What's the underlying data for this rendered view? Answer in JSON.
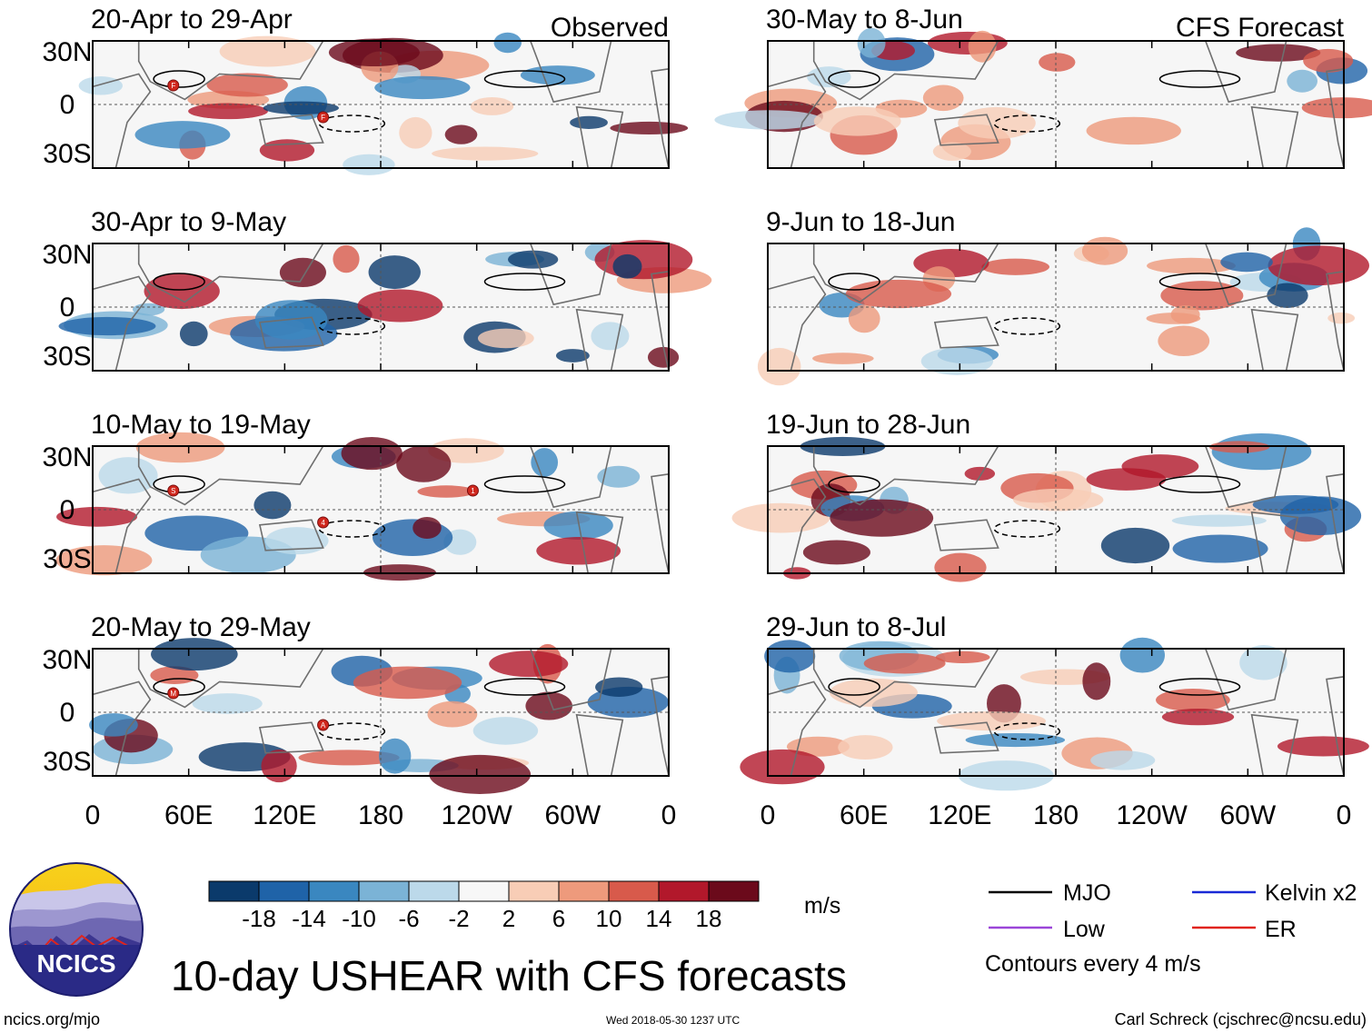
{
  "chart_data": {
    "type": "heatmap",
    "title": "10-day USHEAR with CFS forecasts",
    "units": "m/s",
    "xticks": [
      "0",
      "60E",
      "120E",
      "180",
      "120W",
      "60W",
      "0"
    ],
    "yticks": [
      "30N",
      "0",
      "30S"
    ],
    "column_headers": [
      "Observed",
      "CFS Forecast"
    ],
    "colorbar": {
      "labels": [
        "-18",
        "-14",
        "-10",
        "-6",
        "-2",
        "2",
        "6",
        "10",
        "14",
        "18"
      ],
      "colors": [
        "#0b3a6b",
        "#1f63a8",
        "#3a87c0",
        "#7bb3d6",
        "#bcd9ea",
        "#f7f7f7",
        "#f8cdb6",
        "#ee9a7c",
        "#d85a4b",
        "#b2182b",
        "#6b0a1b"
      ]
    },
    "contour_interval": "Contours every 4 m/s",
    "legend": [
      {
        "label": "MJO",
        "color": "#000000"
      },
      {
        "label": "Kelvin x2",
        "color": "#1a2ad6"
      },
      {
        "label": "Low",
        "color": "#9b45d8"
      },
      {
        "label": "ER",
        "color": "#e0241c"
      }
    ],
    "panels": [
      {
        "period": "20-Apr to 29-Apr",
        "source": "Observed",
        "header": "Observed",
        "storms": [
          "F",
          "F"
        ]
      },
      {
        "period": "30-Apr to 9-May",
        "source": "Observed",
        "header": "",
        "storms": []
      },
      {
        "period": "10-May to 19-May",
        "source": "Observed",
        "header": "",
        "storms": [
          "S",
          "4",
          "1"
        ]
      },
      {
        "period": "20-May to 29-May",
        "source": "Observed",
        "header": "",
        "storms": [
          "M",
          "A"
        ]
      },
      {
        "period": "30-May to 8-Jun",
        "source": "CFS Forecast",
        "header": "CFS Forecast",
        "storms": []
      },
      {
        "period": "9-Jun to 18-Jun",
        "source": "CFS Forecast",
        "header": "",
        "storms": []
      },
      {
        "period": "19-Jun to 28-Jun",
        "source": "CFS Forecast",
        "header": "",
        "storms": []
      },
      {
        "period": "29-Jun to 8-Jul",
        "source": "CFS Forecast",
        "header": "",
        "storms": []
      }
    ]
  },
  "logo": {
    "text": "NCICS"
  },
  "footer": {
    "url": "ncics.org/mjo",
    "timestamp": "Wed 2018-05-30 1237 UTC",
    "credit": "Carl Schreck (cjschrec@ncsu.edu)"
  }
}
